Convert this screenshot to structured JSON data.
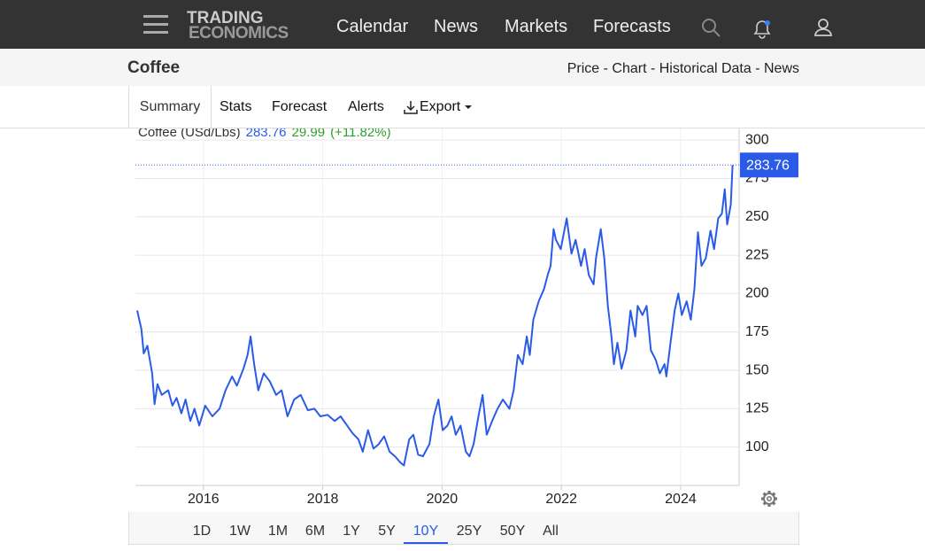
{
  "nav": {
    "logo_top": "TRADING",
    "logo_bottom": "ECONOMICS",
    "items": [
      "Calendar",
      "News",
      "Markets",
      "Forecasts"
    ]
  },
  "header": {
    "title": "Coffee",
    "links": "Price - Chart - Historical Data - News"
  },
  "tabs": [
    "Summary",
    "Stats",
    "Forecast",
    "Alerts",
    "Export"
  ],
  "chart_data": {
    "type": "line",
    "change": 29.99,
    "change_percent": "(+11.82%)",
    "x": [
      2014.89,
      2014.96,
      2015.0,
      2015.06,
      2015.14,
      2015.18,
      2015.23,
      2015.3,
      2015.41,
      2015.48,
      2015.55,
      2015.63,
      2015.7,
      2015.78,
      2015.85,
      2015.93,
      2016.03,
      2016.15,
      2016.27,
      2016.37,
      2016.48,
      2016.56,
      2016.67,
      2016.74,
      2016.79,
      2016.85,
      2016.92,
      2017.01,
      2017.11,
      2017.22,
      2017.31,
      2017.41,
      2017.52,
      2017.63,
      2017.75,
      2017.86,
      2017.96,
      2018.08,
      2018.2,
      2018.3,
      2018.41,
      2018.5,
      2018.6,
      2018.67,
      2018.76,
      2018.85,
      2018.94,
      2019.03,
      2019.12,
      2019.21,
      2019.3,
      2019.36,
      2019.45,
      2019.52,
      2019.6,
      2019.68,
      2019.79,
      2019.86,
      2019.94,
      2020.01,
      2020.09,
      2020.16,
      2020.23,
      2020.31,
      2020.4,
      2020.46,
      2020.53,
      2020.61,
      2020.68,
      2020.75,
      2020.84,
      2020.93,
      2021.02,
      2021.13,
      2021.2,
      2021.27,
      2021.35,
      2021.42,
      2021.47,
      2021.53,
      2021.62,
      2021.71,
      2021.77,
      2021.82,
      2021.87,
      2021.91,
      2021.99,
      2022.09,
      2022.17,
      2022.24,
      2022.33,
      2022.39,
      2022.46,
      2022.54,
      2022.58,
      2022.66,
      2022.72,
      2022.78,
      2022.84,
      2022.88,
      2022.94,
      2023.01,
      2023.09,
      2023.16,
      2023.24,
      2023.28,
      2023.36,
      2023.43,
      2023.5,
      2023.58,
      2023.65,
      2023.73,
      2023.76,
      2023.83,
      2023.9,
      2023.96,
      2024.02,
      2024.1,
      2024.17,
      2024.23,
      2024.29,
      2024.35,
      2024.42,
      2024.5,
      2024.56,
      2024.63,
      2024.69,
      2024.74,
      2024.78,
      2024.84,
      2024.87
    ],
    "series": [
      {
        "name": "Coffee (USd/Lbs)",
        "color": "#2a5be8",
        "values": [
          189,
          177,
          161,
          166,
          148,
          128,
          141,
          134,
          137,
          127,
          132,
          122,
          131,
          117,
          125,
          114,
          127,
          120,
          125,
          137,
          146,
          140,
          151,
          160,
          172,
          154,
          137,
          148,
          143,
          134,
          137,
          120,
          131,
          134,
          124,
          125,
          120,
          121,
          117,
          120,
          114,
          109,
          105,
          97,
          111,
          99,
          102,
          107,
          97,
          94,
          90,
          88,
          105,
          108,
          95,
          94,
          102,
          120,
          131,
          111,
          114,
          120,
          108,
          114,
          97,
          94,
          102,
          120,
          134,
          108,
          117,
          125,
          131,
          125,
          137,
          160,
          154,
          172,
          160,
          183,
          195,
          203,
          212,
          218,
          242,
          235,
          229,
          249,
          226,
          235,
          218,
          229,
          212,
          206,
          223,
          242,
          223,
          192,
          172,
          154,
          168,
          151,
          163,
          189,
          172,
          192,
          186,
          192,
          163,
          157,
          148,
          154,
          146,
          168,
          189,
          200,
          186,
          195,
          183,
          203,
          240,
          218,
          223,
          241,
          229,
          249,
          252,
          268,
          245,
          258,
          283.76
        ]
      }
    ],
    "xlim": [
      2014.86,
      2024.98
    ],
    "xticks": [
      2016,
      2018,
      2020,
      2022,
      2024
    ],
    "ylim": [
      75,
      307
    ],
    "yticks": [
      100,
      125,
      150,
      175,
      200,
      225,
      250,
      275,
      300
    ],
    "grid": true
  },
  "ranges": [
    "1D",
    "1W",
    "1M",
    "6M",
    "1Y",
    "5Y",
    "10Y",
    "25Y",
    "50Y",
    "All"
  ],
  "active_range": "10Y"
}
